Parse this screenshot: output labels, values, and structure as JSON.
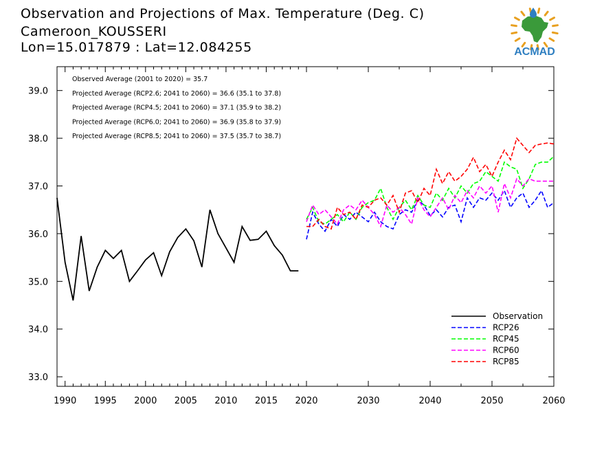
{
  "header": {
    "line1": "Observation and Projections of Max. Temperature (Deg. C)",
    "line2": "Cameroon_KOUSSERI",
    "line3": "Lon=15.017879 : Lat=12.084255"
  },
  "logo": {
    "text": "ACMAD",
    "colors": {
      "text": "#2f7fc1",
      "map": "#3a9a3a",
      "rays": "#e8a020",
      "drop": "#2f7fc1"
    }
  },
  "annotations": [
    "Observed Average (2001 to 2020) = 35.7",
    "Projected Average (RCP2.6; 2041 to 2060) = 36.6 (35.1 to 37.8)",
    "Projected Average (RCP4.5; 2041 to 2060) = 37.1 (35.9 to 38.2)",
    "Projected Average (RCP6.0; 2041 to 2060) = 36.9 (35.8 to 37.9)",
    "Projected Average (RCP8.5; 2041 to 2060) = 37.5 (35.7 to 38.7)"
  ],
  "chart_data": {
    "type": "line",
    "title": "Observation and Projections of Max. Temperature (Deg. C)",
    "xlabel": "",
    "ylabel": "",
    "ylim": [
      32.8,
      39.5
    ],
    "xlim": [
      1989,
      2060
    ],
    "grid": false,
    "legend_position": "bottom-right",
    "y_ticks": [
      "33.0",
      "34.0",
      "35.0",
      "36.0",
      "37.0",
      "38.0",
      "39.0"
    ],
    "x_ticks_left": [
      "1990",
      "1995",
      "2000",
      "2005",
      "2010",
      "2015",
      "2020"
    ],
    "x_ticks_right": [
      "2030",
      "2040",
      "2050",
      "2060"
    ],
    "series": [
      {
        "name": "Observation",
        "color": "#000000",
        "dashed": false,
        "x": [
          1989,
          1990,
          1991,
          1992,
          1993,
          1994,
          1995,
          1996,
          1997,
          1998,
          1999,
          2000,
          2001,
          2002,
          2003,
          2004,
          2005,
          2006,
          2007,
          2008,
          2009,
          2010,
          2011,
          2012,
          2013,
          2014,
          2015,
          2016,
          2017,
          2018,
          2019
        ],
        "values": [
          36.75,
          35.4,
          34.6,
          35.95,
          34.8,
          35.3,
          35.65,
          35.48,
          35.65,
          35.0,
          35.22,
          35.45,
          35.6,
          35.12,
          35.62,
          35.92,
          36.1,
          35.85,
          35.3,
          36.5,
          36.0,
          35.7,
          35.4,
          36.15,
          35.86,
          35.88,
          36.05,
          35.75,
          35.55,
          35.22,
          35.22
        ]
      },
      {
        "name": "RCP26",
        "color": "#0000ff",
        "dashed": true,
        "x": [
          2020,
          2021,
          2022,
          2023,
          2024,
          2025,
          2026,
          2027,
          2028,
          2029,
          2030,
          2031,
          2032,
          2033,
          2034,
          2035,
          2036,
          2037,
          2038,
          2039,
          2040,
          2041,
          2042,
          2043,
          2044,
          2045,
          2046,
          2047,
          2048,
          2049,
          2050,
          2051,
          2052,
          2053,
          2054,
          2055,
          2056,
          2057,
          2058,
          2059,
          2060
        ],
        "values": [
          35.88,
          36.45,
          36.2,
          36.05,
          36.3,
          36.15,
          36.4,
          36.3,
          36.45,
          36.35,
          36.25,
          36.45,
          36.25,
          36.15,
          36.1,
          36.4,
          36.5,
          36.45,
          36.7,
          36.6,
          36.38,
          36.5,
          36.35,
          36.55,
          36.6,
          36.25,
          36.75,
          36.55,
          36.75,
          36.7,
          36.85,
          36.7,
          36.9,
          36.55,
          36.75,
          36.85,
          36.55,
          36.7,
          36.9,
          36.55,
          36.65
        ]
      },
      {
        "name": "RCP45",
        "color": "#00ff00",
        "dashed": true,
        "x": [
          2020,
          2021,
          2022,
          2023,
          2024,
          2025,
          2026,
          2027,
          2028,
          2029,
          2030,
          2031,
          2032,
          2033,
          2034,
          2035,
          2036,
          2037,
          2038,
          2039,
          2040,
          2041,
          2042,
          2043,
          2044,
          2045,
          2046,
          2047,
          2048,
          2049,
          2050,
          2051,
          2052,
          2053,
          2054,
          2055,
          2056,
          2057,
          2058,
          2059,
          2060
        ],
        "values": [
          36.3,
          36.55,
          36.25,
          36.2,
          36.3,
          36.4,
          36.25,
          36.45,
          36.3,
          36.55,
          36.65,
          36.7,
          36.95,
          36.55,
          36.3,
          36.55,
          36.7,
          36.5,
          36.8,
          36.6,
          36.55,
          36.85,
          36.7,
          36.95,
          36.75,
          37.0,
          36.85,
          37.05,
          37.1,
          37.3,
          37.2,
          37.1,
          37.5,
          37.4,
          37.35,
          36.95,
          37.15,
          37.45,
          37.5,
          37.5,
          37.62
        ]
      },
      {
        "name": "RCP60",
        "color": "#ff00ff",
        "dashed": true,
        "x": [
          2020,
          2021,
          2022,
          2023,
          2024,
          2025,
          2026,
          2027,
          2028,
          2029,
          2030,
          2031,
          2032,
          2033,
          2034,
          2035,
          2036,
          2037,
          2038,
          2039,
          2040,
          2041,
          2042,
          2043,
          2044,
          2045,
          2046,
          2047,
          2048,
          2049,
          2050,
          2051,
          2052,
          2053,
          2054,
          2055,
          2056,
          2057,
          2058,
          2059,
          2060
        ],
        "values": [
          36.25,
          36.6,
          36.4,
          36.5,
          36.35,
          36.2,
          36.5,
          36.6,
          36.5,
          36.7,
          36.55,
          36.4,
          36.15,
          36.6,
          36.45,
          36.55,
          36.4,
          36.2,
          36.75,
          36.5,
          36.35,
          36.55,
          36.75,
          36.5,
          36.8,
          36.65,
          36.9,
          36.75,
          37.0,
          36.85,
          37.0,
          36.45,
          37.05,
          36.75,
          37.15,
          37.0,
          37.15,
          37.1,
          37.1,
          37.1,
          37.1
        ]
      },
      {
        "name": "RCP85",
        "color": "#ff0000",
        "dashed": true,
        "x": [
          2020,
          2021,
          2022,
          2023,
          2024,
          2025,
          2026,
          2027,
          2028,
          2029,
          2030,
          2031,
          2032,
          2033,
          2034,
          2035,
          2036,
          2037,
          2038,
          2039,
          2040,
          2041,
          2042,
          2043,
          2044,
          2045,
          2046,
          2047,
          2048,
          2049,
          2050,
          2051,
          2052,
          2053,
          2054,
          2055,
          2056,
          2057,
          2058,
          2059,
          2060
        ],
        "values": [
          36.15,
          36.15,
          36.3,
          36.15,
          36.1,
          36.55,
          36.4,
          36.45,
          36.3,
          36.6,
          36.55,
          36.7,
          36.75,
          36.6,
          36.8,
          36.45,
          36.85,
          36.9,
          36.65,
          36.95,
          36.8,
          37.35,
          37.05,
          37.3,
          37.1,
          37.2,
          37.35,
          37.6,
          37.3,
          37.45,
          37.2,
          37.5,
          37.75,
          37.55,
          38.0,
          37.85,
          37.7,
          37.85,
          37.88,
          37.9,
          37.88
        ]
      }
    ]
  }
}
